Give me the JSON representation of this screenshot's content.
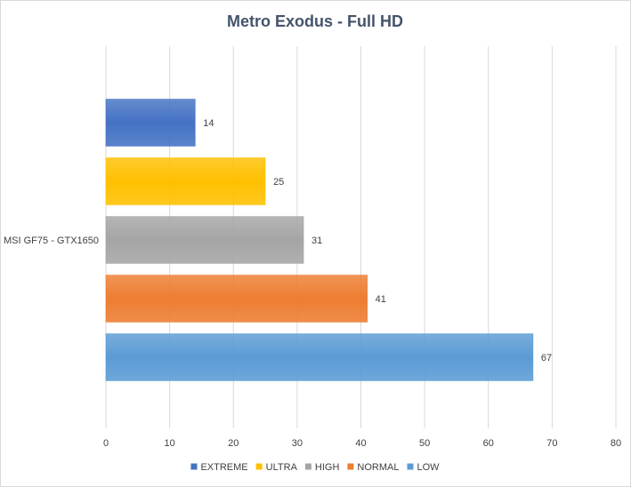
{
  "chart_data": {
    "type": "bar",
    "orientation": "horizontal",
    "title": "Metro Exodus - Full HD",
    "categories": [
      "MSI GF75 - GTX1650"
    ],
    "series": [
      {
        "name": "EXTREME",
        "values": [
          14
        ],
        "color": "#4472c4"
      },
      {
        "name": "ULTRA",
        "values": [
          25
        ],
        "color": "#ffc000"
      },
      {
        "name": "HIGH",
        "values": [
          31
        ],
        "color": "#a5a5a5"
      },
      {
        "name": "NORMAL",
        "values": [
          41
        ],
        "color": "#ed7d31"
      },
      {
        "name": "LOW",
        "values": [
          67
        ],
        "color": "#5b9bd5"
      }
    ],
    "xlim": [
      0,
      80
    ],
    "xticks": [
      0,
      10,
      20,
      30,
      40,
      50,
      60,
      70,
      80
    ],
    "xlabel": "",
    "ylabel": "",
    "grid": true,
    "legend_position": "bottom",
    "data_labels": true
  }
}
